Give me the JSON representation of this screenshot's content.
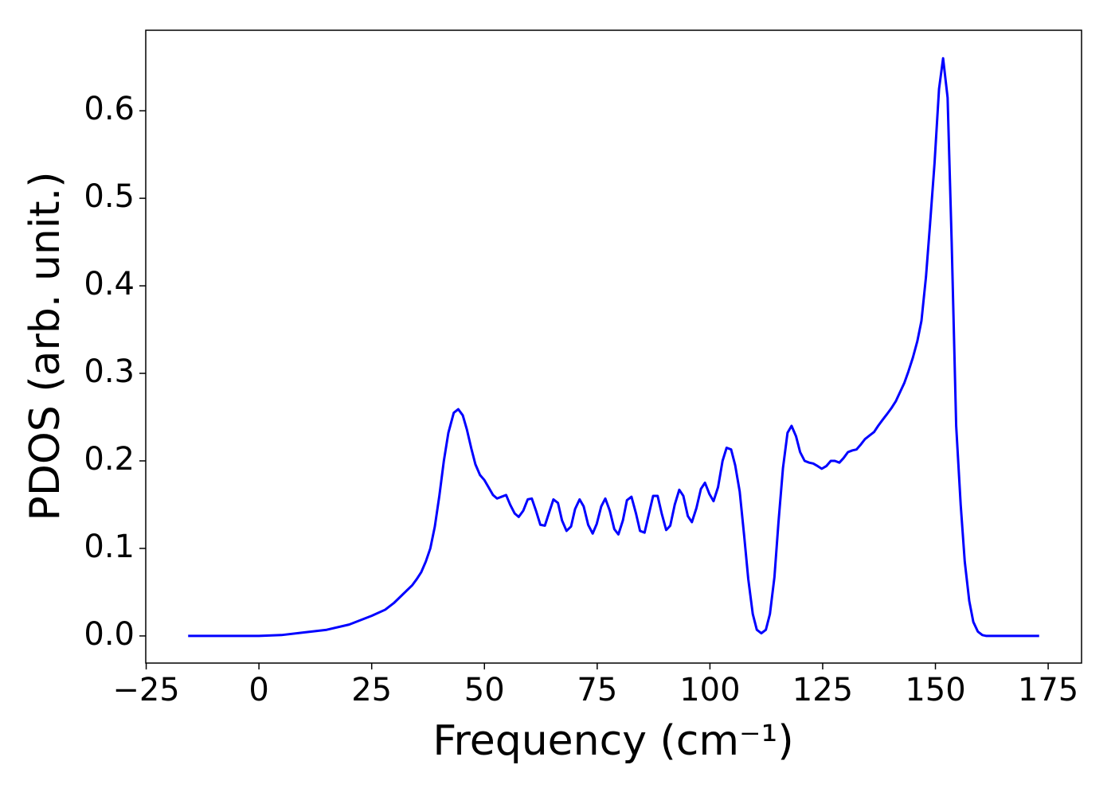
{
  "chart_data": {
    "type": "line",
    "xlabel": "Frequency (cm⁻¹)",
    "ylabel": "PDOS (arb. unit.)",
    "xlim": [
      -25.1,
      182.4
    ],
    "ylim": [
      -0.031,
      0.692
    ],
    "xticks": [
      {
        "value": -25,
        "label": "−25"
      },
      0,
      25,
      50,
      75,
      100,
      125,
      150,
      175
    ],
    "yticks": [
      {
        "value": 0,
        "label": "0.0"
      },
      0.1,
      0.2,
      0.3,
      0.4,
      0.5,
      0.6
    ],
    "series": [
      {
        "name": "PDOS",
        "color": "#0000ff",
        "x": [
          -15.7,
          0,
          5,
          10,
          15,
          20,
          25,
          28,
          30,
          32,
          34,
          35,
          36,
          37,
          38,
          39,
          40,
          41,
          42,
          43.2,
          44.2,
          45.2,
          46.1,
          47.1,
          48.0,
          49.0,
          50.0,
          50.9,
          51.9,
          52.8,
          53.8,
          54.8,
          55.7,
          56.7,
          57.6,
          58.6,
          59.6,
          60.5,
          61.5,
          62.4,
          63.4,
          64.4,
          65.3,
          66.3,
          67.2,
          68.2,
          69.2,
          70.1,
          71.1,
          72.0,
          73.0,
          74.0,
          74.9,
          75.9,
          76.8,
          77.8,
          78.8,
          79.7,
          80.7,
          81.6,
          82.6,
          83.6,
          84.5,
          85.5,
          86.4,
          87.4,
          88.4,
          89.3,
          90.3,
          91.2,
          92.2,
          93.2,
          94.1,
          95.1,
          96.0,
          97.0,
          98.0,
          98.9,
          99.9,
          100.8,
          101.8,
          102.8,
          103.7,
          104.7,
          105.6,
          106.6,
          107.6,
          108.5,
          109.5,
          110.4,
          111.4,
          112.4,
          113.3,
          114.3,
          115.2,
          116.2,
          117.2,
          118.1,
          119.1,
          120.0,
          121.0,
          122.0,
          122.9,
          123.9,
          124.8,
          125.8,
          126.8,
          127.7,
          128.7,
          129.6,
          130.6,
          131.6,
          132.5,
          133.5,
          134.4,
          135.4,
          136.4,
          137.3,
          138.3,
          139.2,
          140.2,
          141.2,
          142.1,
          143.1,
          144.0,
          145.0,
          146.0,
          146.9,
          147.9,
          148.8,
          149.8,
          150.8,
          151.7,
          152.7,
          153.6,
          154.6,
          155.6,
          156.5,
          157.5,
          158.4,
          159.4,
          160.4,
          161.3,
          165,
          170,
          173
        ],
        "values": [
          0,
          0,
          0.001,
          0.004,
          0.007,
          0.013,
          0.023,
          0.03,
          0.038,
          0.048,
          0.058,
          0.065,
          0.073,
          0.085,
          0.1,
          0.125,
          0.16,
          0.2,
          0.232,
          0.255,
          0.259,
          0.252,
          0.236,
          0.214,
          0.196,
          0.184,
          0.178,
          0.17,
          0.161,
          0.157,
          0.159,
          0.161,
          0.15,
          0.14,
          0.136,
          0.143,
          0.156,
          0.157,
          0.142,
          0.127,
          0.126,
          0.142,
          0.156,
          0.152,
          0.132,
          0.12,
          0.125,
          0.145,
          0.156,
          0.148,
          0.127,
          0.117,
          0.128,
          0.148,
          0.157,
          0.143,
          0.122,
          0.116,
          0.132,
          0.155,
          0.159,
          0.14,
          0.12,
          0.118,
          0.138,
          0.16,
          0.16,
          0.14,
          0.121,
          0.126,
          0.15,
          0.167,
          0.16,
          0.137,
          0.13,
          0.146,
          0.168,
          0.175,
          0.162,
          0.154,
          0.17,
          0.2,
          0.215,
          0.213,
          0.195,
          0.165,
          0.114,
          0.065,
          0.025,
          0.007,
          0.003,
          0.007,
          0.025,
          0.067,
          0.13,
          0.192,
          0.232,
          0.24,
          0.228,
          0.21,
          0.2,
          0.198,
          0.197,
          0.194,
          0.191,
          0.194,
          0.2,
          0.2,
          0.198,
          0.203,
          0.21,
          0.212,
          0.213,
          0.219,
          0.225,
          0.229,
          0.233,
          0.24,
          0.247,
          0.253,
          0.26,
          0.268,
          0.278,
          0.289,
          0.302,
          0.318,
          0.337,
          0.36,
          0.41,
          0.47,
          0.54,
          0.625,
          0.66,
          0.615,
          0.45,
          0.24,
          0.15,
          0.085,
          0.04,
          0.016,
          0.005,
          0.001,
          0,
          0,
          0,
          0
        ]
      }
    ]
  }
}
